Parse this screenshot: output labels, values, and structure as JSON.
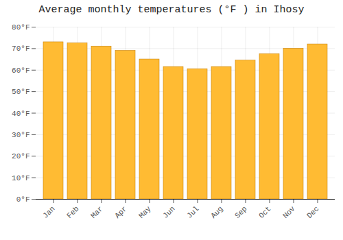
{
  "chart_data": {
    "type": "bar",
    "title": "Average monthly temperatures (°F ) in Ihosy",
    "categories": [
      "Jan",
      "Feb",
      "Mar",
      "Apr",
      "May",
      "Jun",
      "Jul",
      "Aug",
      "Sep",
      "Oct",
      "Nov",
      "Dec"
    ],
    "values": [
      73,
      72.5,
      71,
      69,
      65,
      61.5,
      60.5,
      61.5,
      64.5,
      67.5,
      70,
      72
    ],
    "color": "#FFBB33",
    "ylim": [
      0,
      80
    ],
    "yticks": [
      {
        "value": 0,
        "label": "0°F"
      },
      {
        "value": 10,
        "label": "10°F"
      },
      {
        "value": 20,
        "label": "20°F"
      },
      {
        "value": 30,
        "label": "30°F"
      },
      {
        "value": 40,
        "label": "40°F"
      },
      {
        "value": 50,
        "label": "50°F"
      },
      {
        "value": 60,
        "label": "60°F"
      },
      {
        "value": 70,
        "label": "70°F"
      },
      {
        "value": 80,
        "label": "80°F"
      }
    ],
    "grid": true
  }
}
